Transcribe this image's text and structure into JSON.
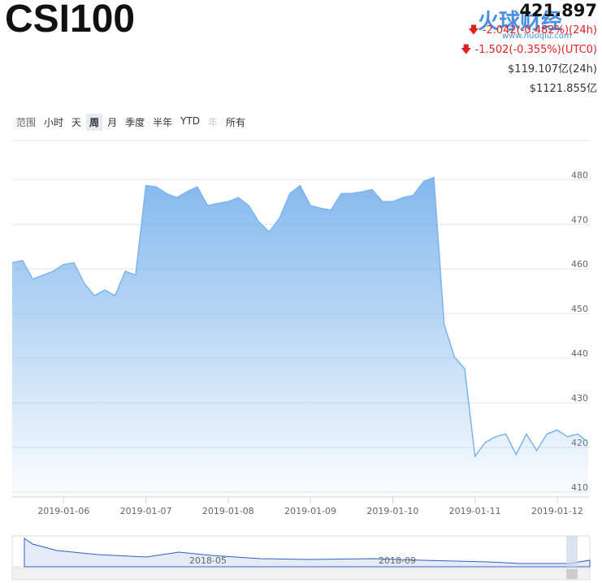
{
  "header": {
    "title": "CSI100",
    "price": "421.897",
    "change_24h": "-2.042(-0.482%)(24h)",
    "change_utc0": "-1.502(-0.355%)(UTC0)",
    "volume": "$119.107亿(24h)",
    "market_cap": "$1121.855亿",
    "watermark": "火球财经",
    "watermark_url": "www.huoqiu.com"
  },
  "range": {
    "label": "范围",
    "options": [
      "小时",
      "天",
      "周",
      "月",
      "季度",
      "半年",
      "YTD",
      "年",
      "所有"
    ],
    "selected": 2,
    "disabled": 7
  },
  "navigator": {
    "labels": [
      "2018-05",
      "2018-09"
    ]
  },
  "chart_data": {
    "type": "area",
    "x": [
      "2019-01-05T09:00",
      "2019-01-05T12:00",
      "2019-01-05T15:00",
      "2019-01-05T18:00",
      "2019-01-05T21:00",
      "2019-01-06T00:00",
      "2019-01-06T03:00",
      "2019-01-06T06:00",
      "2019-01-06T09:00",
      "2019-01-06T12:00",
      "2019-01-06T15:00",
      "2019-01-06T18:00",
      "2019-01-06T21:00",
      "2019-01-07T00:00",
      "2019-01-07T03:00",
      "2019-01-07T06:00",
      "2019-01-07T09:00",
      "2019-01-07T12:00",
      "2019-01-07T15:00",
      "2019-01-07T18:00",
      "2019-01-07T21:00",
      "2019-01-08T00:00",
      "2019-01-08T03:00",
      "2019-01-08T06:00",
      "2019-01-08T09:00",
      "2019-01-08T12:00",
      "2019-01-08T15:00",
      "2019-01-08T18:00",
      "2019-01-08T21:00",
      "2019-01-09T00:00",
      "2019-01-09T03:00",
      "2019-01-09T06:00",
      "2019-01-09T09:00",
      "2019-01-09T12:00",
      "2019-01-09T15:00",
      "2019-01-09T18:00",
      "2019-01-09T21:00",
      "2019-01-10T00:00",
      "2019-01-10T03:00",
      "2019-01-10T06:00",
      "2019-01-10T09:00",
      "2019-01-10T12:00",
      "2019-01-10T15:00",
      "2019-01-10T18:00",
      "2019-01-10T21:00",
      "2019-01-11T00:00",
      "2019-01-11T03:00",
      "2019-01-11T06:00",
      "2019-01-11T09:00",
      "2019-01-11T12:00",
      "2019-01-11T15:00",
      "2019-01-11T18:00",
      "2019-01-11T21:00",
      "2019-01-12T00:00",
      "2019-01-12T03:00",
      "2019-01-12T06:00",
      "2019-01-12T09:00"
    ],
    "series": [
      {
        "color": "#7cb5ec",
        "values": [
          461.4,
          461.9,
          457.7,
          458.6,
          459.5,
          461,
          461.4,
          456.8,
          454,
          455.3,
          454,
          459.5,
          458.6,
          478.7,
          478.4,
          476.9,
          476,
          477.3,
          478.4,
          474.2,
          474.7,
          475.1,
          476,
          474.2,
          470.5,
          468.3,
          471.4,
          476.9,
          478.7,
          474.2,
          473.6,
          473.2,
          476.9,
          476.9,
          477.3,
          477.8,
          475.1,
          475.1,
          476,
          476.5,
          479.6,
          480.5,
          447.6,
          440.3,
          437.6,
          418,
          421.1,
          422.4,
          423,
          418.4,
          423,
          419.3,
          423,
          423.9,
          422.4,
          423,
          421.1
        ]
      }
    ],
    "xlim": [
      "2019-01-05T09:00",
      "2019-01-12T09:30"
    ],
    "xticks": [
      "2019-01-06",
      "2019-01-07",
      "2019-01-08",
      "2019-01-09",
      "2019-01-10",
      "2019-01-11",
      "2019-01-12"
    ],
    "ylim": [
      408.9,
      488.8
    ],
    "yticks": [
      410,
      420,
      430,
      440,
      450,
      460,
      470,
      480
    ],
    "grid": true
  }
}
